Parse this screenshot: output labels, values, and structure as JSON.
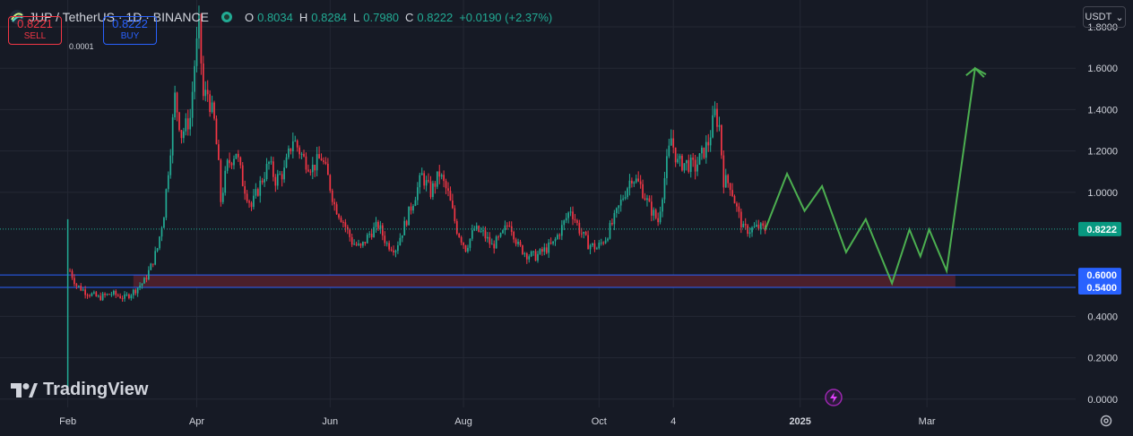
{
  "header": {
    "symbol": "JUP / TetherUS · 1D · BINANCE",
    "ohlc": [
      {
        "k": "O",
        "v": "0.8034"
      },
      {
        "k": "H",
        "v": "0.8284"
      },
      {
        "k": "L",
        "v": "0.7980"
      },
      {
        "k": "C",
        "v": "0.8222"
      },
      {
        "k": "",
        "v": "+0.0190 (+2.37%)"
      }
    ]
  },
  "trade": {
    "sell_price": "0.8221",
    "sell_label": "SELL",
    "spread": "0.0001",
    "buy_price": "0.8222",
    "buy_label": "BUY"
  },
  "currency": "USDT",
  "brand": "TradingView",
  "colors": {
    "up": "#22ab94",
    "down": "#f23645",
    "projection": "#4caf50",
    "zone": "#4b1f2b",
    "blue": "#2962ff",
    "bg": "#161a25",
    "grid": "#242834"
  },
  "chart_data": {
    "type": "candlestick",
    "y_ticks": [
      "1.8000",
      "1.6000",
      "1.4000",
      "1.2000",
      "1.0000",
      "0.4000",
      "0.2000",
      "0.0000"
    ],
    "x_ticks": [
      {
        "label": "Feb",
        "t": 0
      },
      {
        "label": "Apr",
        "t": 59
      },
      {
        "label": "Jun",
        "t": 120
      },
      {
        "label": "Aug",
        "t": 181
      },
      {
        "label": "Oct",
        "t": 243
      },
      {
        "label": "4",
        "t": 277
      },
      {
        "label": "2025",
        "t": 335
      },
      {
        "label": "Mar",
        "t": 393
      }
    ],
    "ylim": [
      -0.04,
      1.93
    ],
    "xlim": [
      -31,
      461
    ],
    "last_price": 0.8222,
    "last_price_label": "0.8222",
    "support_zone": {
      "low": 0.54,
      "high": 0.6,
      "low_label": "0.5400",
      "high_label": "0.6000",
      "t_end": 406
    },
    "price_path": [
      [
        0,
        0.03
      ],
      [
        1,
        0.62
      ],
      [
        4,
        0.55
      ],
      [
        8,
        0.52
      ],
      [
        14,
        0.49
      ],
      [
        20,
        0.51
      ],
      [
        26,
        0.49
      ],
      [
        30,
        0.52
      ],
      [
        35,
        0.57
      ],
      [
        38,
        0.64
      ],
      [
        41,
        0.73
      ],
      [
        44,
        0.9
      ],
      [
        47,
        1.22
      ],
      [
        49,
        1.46
      ],
      [
        52,
        1.28
      ],
      [
        56,
        1.36
      ],
      [
        58,
        1.62
      ],
      [
        60,
        1.8
      ],
      [
        62,
        1.46
      ],
      [
        64,
        1.48
      ],
      [
        67,
        1.34
      ],
      [
        69,
        1.12
      ],
      [
        70,
        0.96
      ],
      [
        73,
        1.13
      ],
      [
        77,
        1.2
      ],
      [
        80,
        1.05
      ],
      [
        84,
        0.93
      ],
      [
        88,
        1.04
      ],
      [
        92,
        1.14
      ],
      [
        95,
        1.06
      ],
      [
        99,
        1.1
      ],
      [
        103,
        1.26
      ],
      [
        108,
        1.16
      ],
      [
        112,
        1.12
      ],
      [
        116,
        1.17
      ],
      [
        119,
        1.07
      ],
      [
        122,
        0.94
      ],
      [
        126,
        0.86
      ],
      [
        130,
        0.76
      ],
      [
        134,
        0.73
      ],
      [
        138,
        0.8
      ],
      [
        142,
        0.84
      ],
      [
        146,
        0.75
      ],
      [
        150,
        0.73
      ],
      [
        154,
        0.84
      ],
      [
        158,
        0.96
      ],
      [
        162,
        1.08
      ],
      [
        166,
        1.0
      ],
      [
        170,
        1.09
      ],
      [
        174,
        0.99
      ],
      [
        178,
        0.82
      ],
      [
        182,
        0.73
      ],
      [
        186,
        0.82
      ],
      [
        190,
        0.8
      ],
      [
        194,
        0.74
      ],
      [
        198,
        0.78
      ],
      [
        202,
        0.86
      ],
      [
        206,
        0.74
      ],
      [
        210,
        0.7
      ],
      [
        214,
        0.69
      ],
      [
        218,
        0.72
      ],
      [
        222,
        0.75
      ],
      [
        226,
        0.83
      ],
      [
        230,
        0.92
      ],
      [
        234,
        0.82
      ],
      [
        238,
        0.75
      ],
      [
        242,
        0.73
      ],
      [
        246,
        0.78
      ],
      [
        250,
        0.87
      ],
      [
        254,
        0.98
      ],
      [
        258,
        1.08
      ],
      [
        262,
        1.03
      ],
      [
        266,
        0.93
      ],
      [
        270,
        0.86
      ],
      [
        274,
        1.14
      ],
      [
        276,
        1.26
      ],
      [
        279,
        1.14
      ],
      [
        283,
        1.14
      ],
      [
        287,
        1.12
      ],
      [
        290,
        1.18
      ],
      [
        293,
        1.24
      ],
      [
        296,
        1.38
      ],
      [
        298,
        1.32
      ],
      [
        300,
        1.06
      ],
      [
        303,
        1.04
      ],
      [
        306,
        0.92
      ],
      [
        309,
        0.82
      ],
      [
        312,
        0.82
      ],
      [
        316,
        0.83
      ],
      [
        319,
        0.82
      ]
    ],
    "projection": [
      [
        319,
        0.82
      ],
      [
        329,
        1.09
      ],
      [
        337,
        0.91
      ],
      [
        345,
        1.03
      ],
      [
        356,
        0.71
      ],
      [
        365,
        0.87
      ],
      [
        377,
        0.56
      ],
      [
        385,
        0.82
      ],
      [
        390,
        0.69
      ],
      [
        394,
        0.82
      ],
      [
        402,
        0.62
      ],
      [
        415,
        1.6
      ],
      [
        420,
        1.57
      ]
    ]
  }
}
